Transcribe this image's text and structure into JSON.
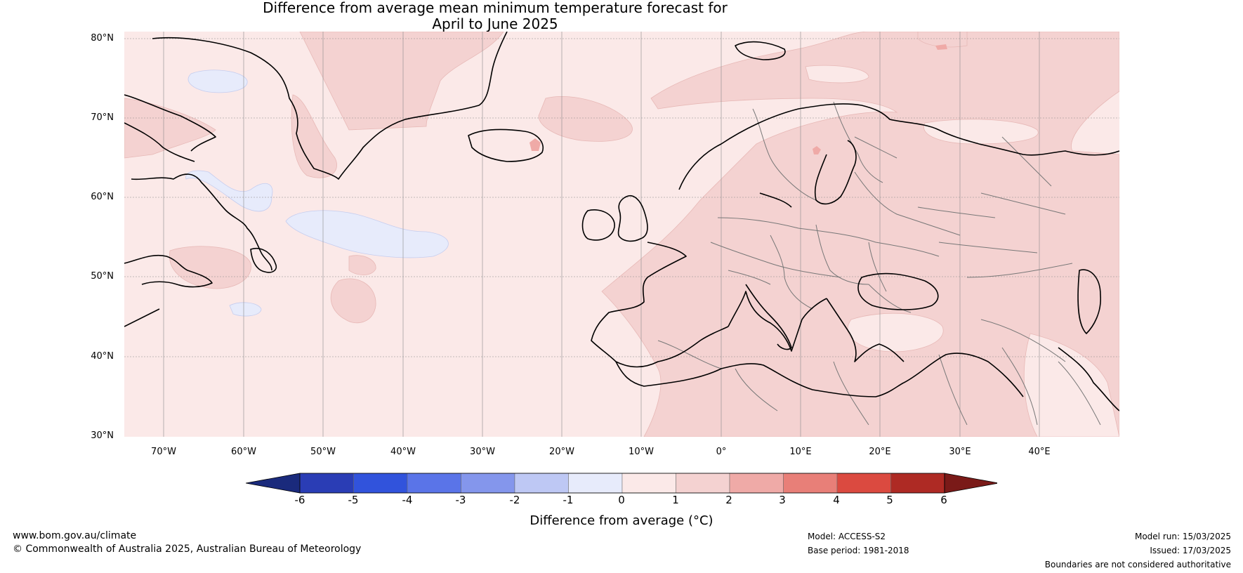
{
  "title": {
    "line1": "Difference from average mean minimum temperature forecast for",
    "line2": "April to June 2025"
  },
  "map": {
    "projection_extent": {
      "lon_min": -75,
      "lon_max": 50,
      "lat_min": 30,
      "lat_max": 81
    },
    "background_anomaly_class": "0 to 1",
    "lat_ticks": [
      "80°N",
      "70°N",
      "60°N",
      "50°N",
      "40°N",
      "30°N"
    ],
    "lon_ticks": [
      "70°W",
      "60°W",
      "50°W",
      "40°W",
      "30°W",
      "20°W",
      "10°W",
      "0°",
      "10°E",
      "20°E",
      "30°E",
      "40°E"
    ]
  },
  "colorbar": {
    "ticks": [
      "-6",
      "-5",
      "-4",
      "-3",
      "-2",
      "-1",
      "0",
      "1",
      "2",
      "3",
      "4",
      "5",
      "6"
    ],
    "colors": [
      "#1a2a7c",
      "#2a3db5",
      "#3153dc",
      "#5a74e8",
      "#8496ec",
      "#bec8f4",
      "#e7ebfb",
      "#fbe9e8",
      "#f4d2d1",
      "#efaaa7",
      "#e87f78",
      "#db4a40",
      "#ae2a24",
      "#7a1a18"
    ],
    "label": "Difference from average (°C)"
  },
  "footer": {
    "website": "www.bom.gov.au/climate",
    "copyright": "© Commonwealth of Australia 2025, Australian Bureau of Meteorology",
    "model": "Model: ACCESS-S2",
    "base_period": "Base period: 1981-2018",
    "model_run": "Model run: 15/03/2025",
    "issued": "Issued: 17/03/2025",
    "disclaimer": "Boundaries are not considered authoritative"
  }
}
